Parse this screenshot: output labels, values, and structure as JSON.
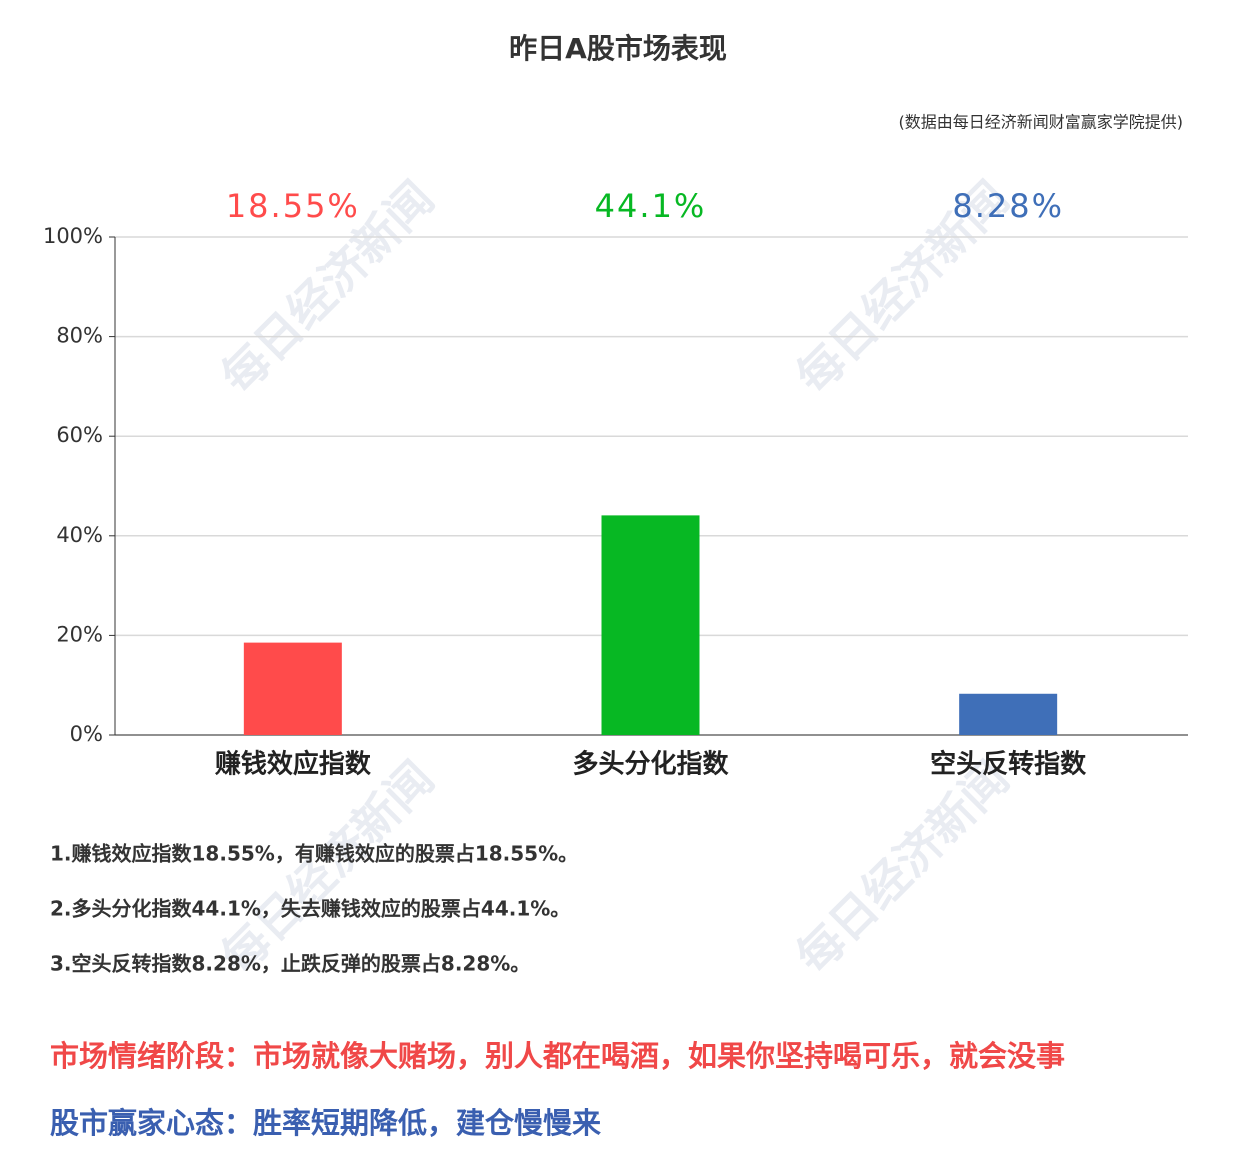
{
  "chart_data": {
    "type": "bar",
    "title": "昨日A股市场表现",
    "source": "(数据由每日经济新闻财富赢家学院提供)",
    "watermark": "每日经济新闻",
    "categories": [
      "赚钱效应指数",
      "多头分化指数",
      "空头反转指数"
    ],
    "values": [
      18.55,
      44.1,
      8.28
    ],
    "value_labels": [
      "18.55%",
      "44.1%",
      "8.28%"
    ],
    "colors": [
      "#ff4b4b",
      "#07b823",
      "#3f6fb8"
    ],
    "ylim": [
      0,
      100
    ],
    "yticks": [
      {
        "value": 0,
        "label": "0%"
      },
      {
        "value": 20,
        "label": "20%"
      },
      {
        "value": 40,
        "label": "40%"
      },
      {
        "value": 60,
        "label": "60%"
      },
      {
        "value": 80,
        "label": "80%"
      },
      {
        "value": 100,
        "label": "100%"
      }
    ],
    "grid": true
  },
  "notes": [
    "1.赚钱效应指数18.55%，有赚钱效应的股票占18.55%。",
    "2.多头分化指数44.1%，失去赚钱效应的股票占44.1%。",
    "3.空头反转指数8.28%，止跌反弹的股票占8.28%。"
  ],
  "footer": {
    "mood": "市场情绪阶段：市场就像大赌场，别人都在喝酒，如果你坚持喝可乐，就会没事",
    "attitude": "股市赢家心态：胜率短期降低，建仓慢慢来"
  }
}
